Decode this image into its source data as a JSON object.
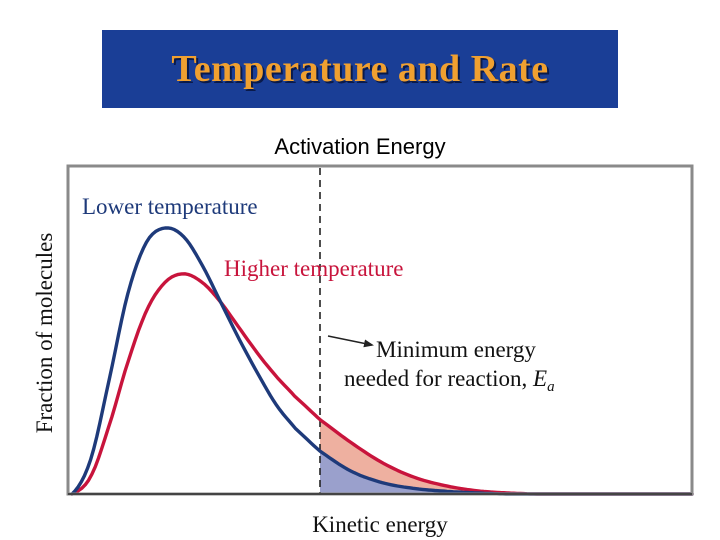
{
  "slide": {
    "title": "Temperature and Rate",
    "subtitle": "Activation Energy"
  },
  "chart_data": {
    "type": "line",
    "title": "",
    "xlabel": "Kinetic energy",
    "ylabel": "Fraction of molecules",
    "x_range": [
      0,
      1
    ],
    "y_range": [
      0,
      1
    ],
    "grid": false,
    "series": [
      {
        "name": "Lower temperature",
        "color": "#1e3a7a",
        "x": [
          0.0,
          0.03,
          0.06,
          0.09,
          0.12,
          0.15,
          0.18,
          0.21,
          0.24,
          0.27,
          0.3,
          0.33,
          0.36,
          0.4,
          0.45,
          0.5,
          0.55,
          0.6,
          0.65,
          0.7
        ],
        "y": [
          0.0,
          0.12,
          0.4,
          0.7,
          0.88,
          0.93,
          0.9,
          0.8,
          0.67,
          0.54,
          0.42,
          0.31,
          0.23,
          0.15,
          0.08,
          0.04,
          0.02,
          0.01,
          0.004,
          0.0
        ]
      },
      {
        "name": "Higher temperature",
        "color": "#c8143c",
        "x": [
          0.0,
          0.03,
          0.06,
          0.09,
          0.12,
          0.15,
          0.18,
          0.21,
          0.24,
          0.27,
          0.3,
          0.33,
          0.36,
          0.4,
          0.45,
          0.5,
          0.55,
          0.6,
          0.65,
          0.7,
          0.75
        ],
        "y": [
          0.0,
          0.06,
          0.24,
          0.46,
          0.64,
          0.74,
          0.77,
          0.74,
          0.67,
          0.58,
          0.49,
          0.41,
          0.34,
          0.26,
          0.18,
          0.11,
          0.06,
          0.03,
          0.012,
          0.004,
          0.0
        ]
      }
    ],
    "threshold": {
      "x": 0.4,
      "label_line1": "Minimum energy",
      "label_line2": "needed for reaction,",
      "symbol": "E",
      "subscript": "a"
    },
    "shading": {
      "higher_fill": "#eeb0a0",
      "lower_fill": "#9aa0cc"
    }
  }
}
